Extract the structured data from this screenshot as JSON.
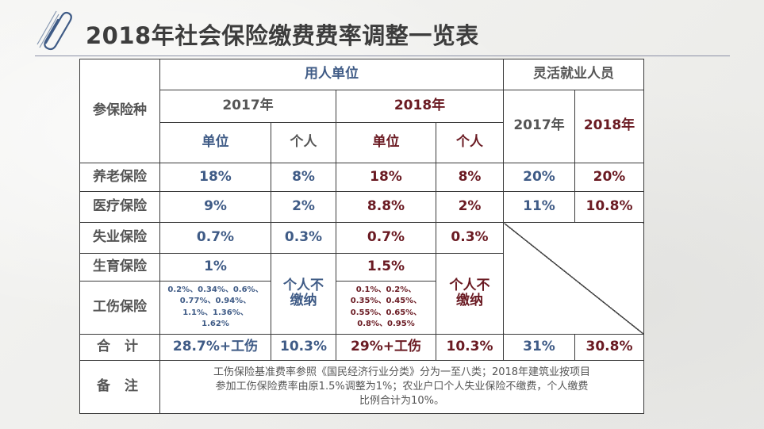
{
  "header": {
    "title": "2018年社会保险缴费费率调整一览表",
    "clip_icon": "paperclip-icon"
  },
  "colors": {
    "navy": "#3f5b86",
    "maroon": "#6a1a22",
    "gray_text": "#555555",
    "border": "#3a3a3a"
  },
  "table": {
    "col_insurance": "参保险种",
    "group_employer": "用人单位",
    "group_flexible": "灵活就业人员",
    "year_2017": "2017年",
    "year_2018": "2018年",
    "unit": "单位",
    "personal": "个人",
    "flex_2017": "2017年",
    "flex_2018": "2018年",
    "rows": {
      "pension": {
        "name": "养老保险",
        "u2017": "18%",
        "p2017": "8%",
        "u2018": "18%",
        "p2018": "8%",
        "f2017": "20%",
        "f2018": "20%"
      },
      "medical": {
        "name": "医疗保险",
        "u2017": "9%",
        "p2017": "2%",
        "u2018": "8.8%",
        "p2018": "2%",
        "f2017": "11%",
        "f2018": "10.8%"
      },
      "unemployment": {
        "name": "失业保险",
        "u2017": "0.7%",
        "p2017": "0.3%",
        "u2018": "0.7%",
        "p2018": "0.3%"
      },
      "maternity": {
        "name": "生育保险",
        "u2017": "1%",
        "u2018": "1.5%"
      },
      "injury": {
        "name": "工伤保险",
        "u2017": [
          "0.2%、0.34%、0.6%、",
          "0.77%、0.94%、",
          "1.1%、1.36%、",
          "1.62%"
        ],
        "u2018": [
          "0.1%、0.2%、",
          "0.35%、0.45%、",
          "0.55%、0.65%、",
          "0.8%、0.95%"
        ]
      },
      "no_personal_2017": [
        "个人不",
        "缴纳"
      ],
      "no_personal_2018": [
        "个人不",
        "缴纳"
      ],
      "total": {
        "name": "合  计",
        "u2017": "28.7%+工伤",
        "p2017": "10.3%",
        "u2018": "29%+工伤",
        "p2018": "10.3%",
        "f2017": "31%",
        "f2018": "30.8%"
      }
    },
    "remarks": {
      "label": "备  注",
      "lines": [
        "工伤保险基准费率参照《国民经济行业分类》分为一至八类；2018年建筑业按项目",
        "参加工伤保险费率由原1.5%调整为1%；农业户口个人失业保险不缴费，个人缴费",
        "比例合计为10%。"
      ]
    }
  }
}
